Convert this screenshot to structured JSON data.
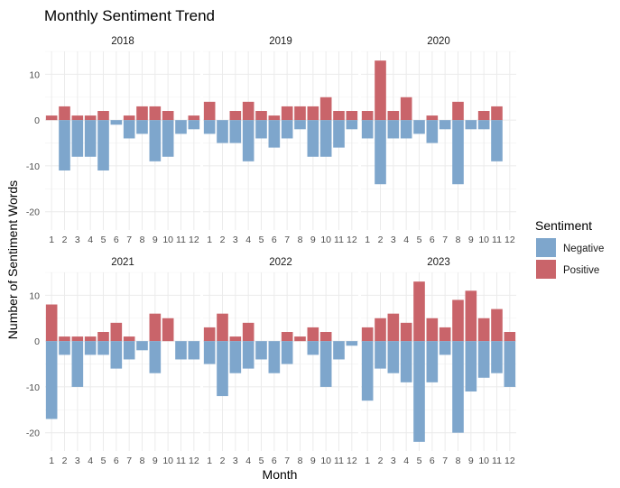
{
  "chart_data": {
    "type": "bar",
    "title": "Monthly Sentiment Trend",
    "xlabel": "Month",
    "ylabel": "Number of Sentiment Words",
    "ylim": [
      -24,
      15
    ],
    "yticks": [
      -20,
      -10,
      0,
      10
    ],
    "grid": true,
    "categories": [
      "1",
      "2",
      "3",
      "4",
      "5",
      "6",
      "7",
      "8",
      "9",
      "10",
      "11",
      "12"
    ],
    "legend": {
      "title": "Sentiment",
      "placement": "right",
      "entries": [
        {
          "name": "Negative",
          "color": "#7ea6cc"
        },
        {
          "name": "Positive",
          "color": "#c9646a"
        }
      ]
    },
    "panels": [
      {
        "label": "2018",
        "positive": [
          1,
          3,
          1,
          1,
          2,
          0,
          1,
          3,
          3,
          2,
          0,
          1
        ],
        "negative": [
          0,
          -11,
          -8,
          -8,
          -11,
          -1,
          -4,
          -3,
          -9,
          -8,
          -3,
          -2
        ]
      },
      {
        "label": "2019",
        "positive": [
          4,
          0,
          2,
          4,
          2,
          1,
          3,
          3,
          3,
          5,
          2,
          2
        ],
        "negative": [
          -3,
          -5,
          -5,
          -9,
          -4,
          -6,
          -4,
          -2,
          -8,
          -8,
          -6,
          -2
        ]
      },
      {
        "label": "2020",
        "positive": [
          2,
          13,
          2,
          5,
          0,
          1,
          0,
          4,
          0,
          2,
          3,
          0
        ],
        "negative": [
          -4,
          -14,
          -4,
          -4,
          -3,
          -5,
          -2,
          -14,
          -2,
          -2,
          -9,
          0
        ]
      },
      {
        "label": "2021",
        "positive": [
          8,
          1,
          1,
          1,
          2,
          4,
          1,
          0,
          6,
          5,
          0,
          0
        ],
        "negative": [
          -17,
          -3,
          -10,
          -3,
          -3,
          -6,
          -4,
          -2,
          -7,
          0,
          -4,
          -4
        ]
      },
      {
        "label": "2022",
        "positive": [
          3,
          6,
          1,
          4,
          0,
          0,
          2,
          1,
          3,
          2,
          0,
          0
        ],
        "negative": [
          -5,
          -12,
          -7,
          -6,
          -4,
          -7,
          -5,
          0,
          -3,
          -10,
          -4,
          -1
        ]
      },
      {
        "label": "2023",
        "positive": [
          3,
          5,
          6,
          4,
          13,
          5,
          3,
          9,
          11,
          5,
          7,
          2
        ],
        "negative": [
          -13,
          -6,
          -7,
          -9,
          -22,
          -9,
          -3,
          -20,
          -11,
          -8,
          -7,
          -10
        ]
      }
    ]
  }
}
